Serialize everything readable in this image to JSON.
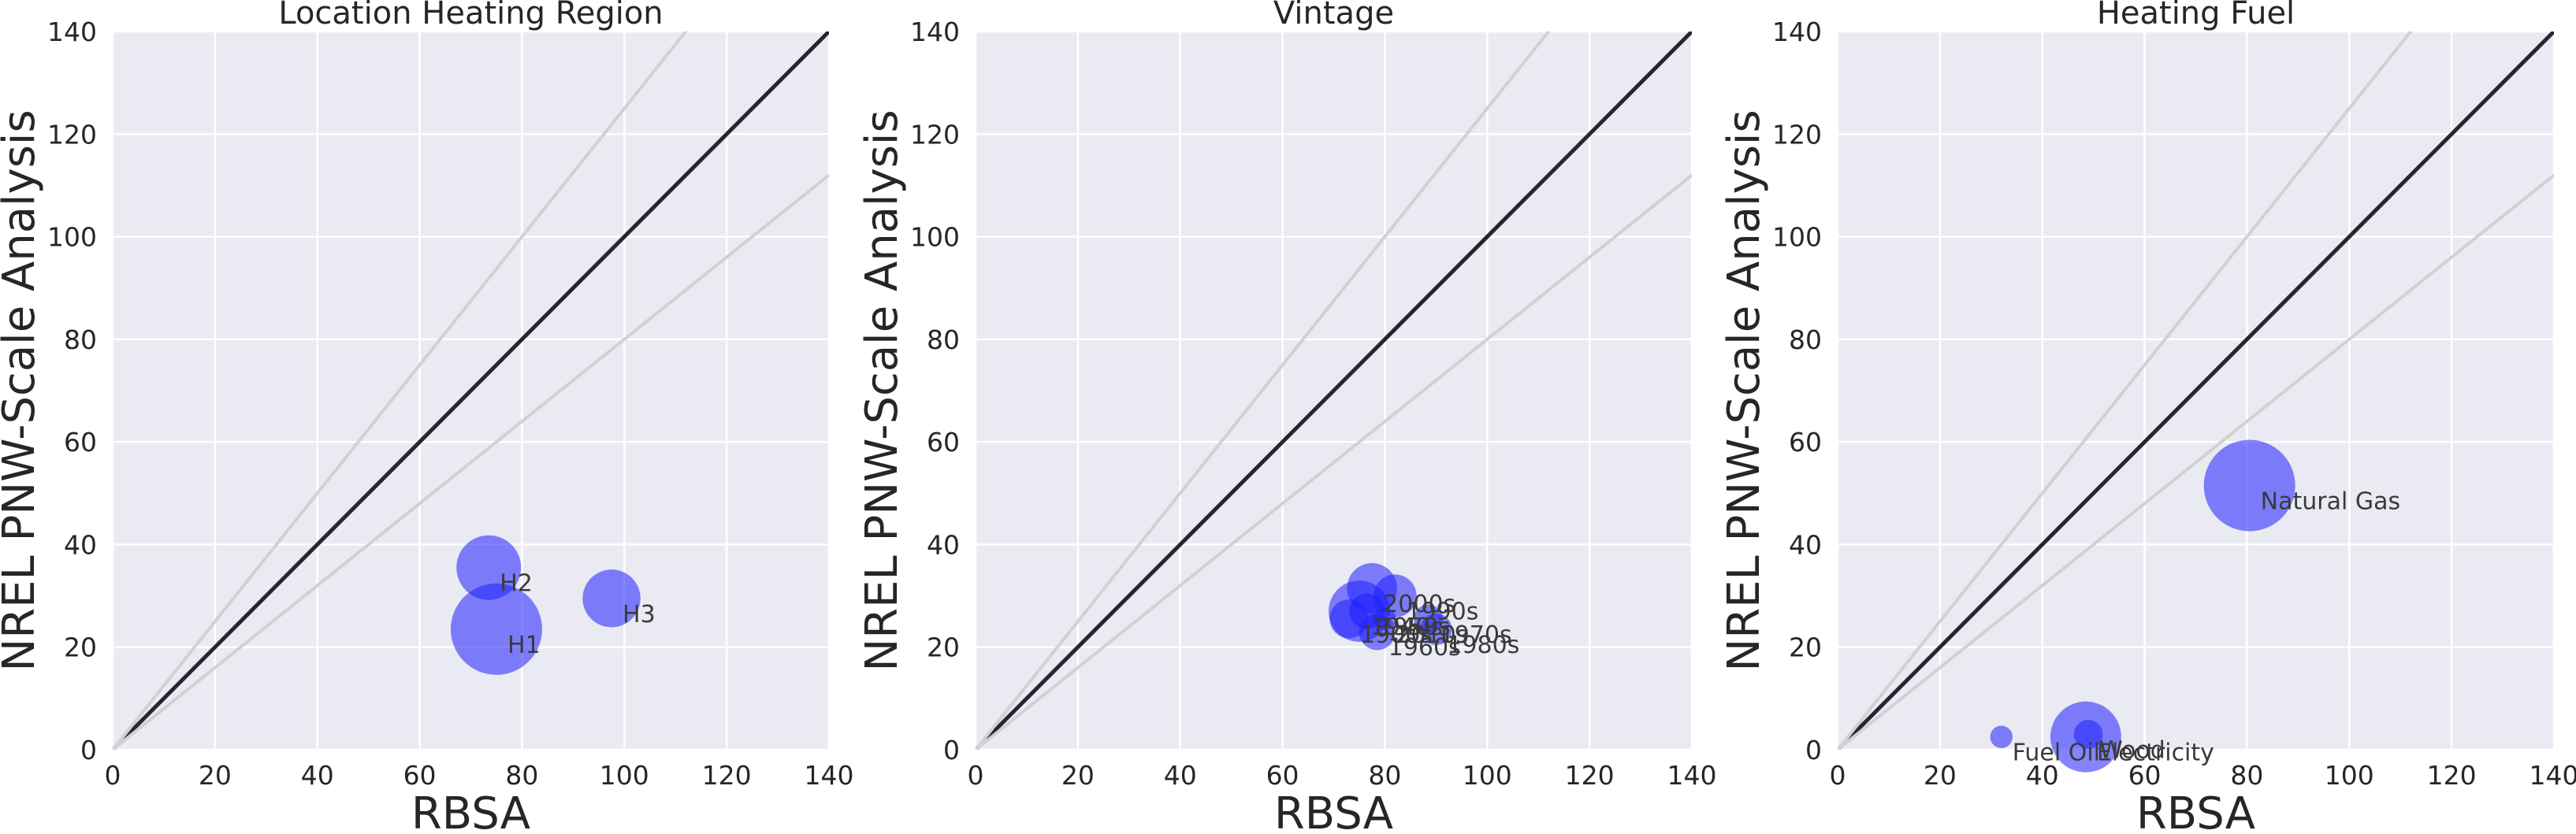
{
  "figure": {
    "plot_bg": "#eaeaf2",
    "grid_color": "#ffffff",
    "bubble_color": "#1f1fff",
    "bubble_opacity": 0.55,
    "identity_line_color": "#262630",
    "guide_line_color": "#d0d0d6"
  },
  "chart_data": [
    {
      "type": "scatter",
      "title": "Location Heating Region",
      "xlabel": "RBSA",
      "ylabel": "NREL PNW-Scale Analysis",
      "xlim": [
        0,
        140
      ],
      "ylim": [
        0,
        140
      ],
      "xticks": [
        "0",
        "20",
        "40",
        "60",
        "80",
        "100",
        "120",
        "140"
      ],
      "yticks": [
        "0",
        "20",
        "40",
        "60",
        "80",
        "100",
        "120",
        "140"
      ],
      "grid": true,
      "reference_lines": [
        {
          "slope": 1.0
        },
        {
          "slope": 1.25
        },
        {
          "slope": 0.8
        }
      ],
      "points": [
        {
          "label": "H2",
          "x": 73.5,
          "y": 35.5,
          "size": 0.5
        },
        {
          "label": "H1",
          "x": 75,
          "y": 23.5,
          "size": 1.0
        },
        {
          "label": "H3",
          "x": 97.5,
          "y": 29.5,
          "size": 0.4
        }
      ]
    },
    {
      "type": "scatter",
      "title": "Vintage",
      "xlabel": "RBSA",
      "ylabel": "NREL PNW-Scale Analysis",
      "xlim": [
        0,
        140
      ],
      "ylim": [
        0,
        140
      ],
      "xticks": [
        "0",
        "20",
        "40",
        "60",
        "80",
        "100",
        "120",
        "140"
      ],
      "yticks": [
        "0",
        "20",
        "40",
        "60",
        "80",
        "100",
        "120",
        "140"
      ],
      "grid": true,
      "reference_lines": [
        {
          "slope": 1.0
        },
        {
          "slope": 1.25
        },
        {
          "slope": 0.8
        }
      ],
      "points": [
        {
          "label": "1990s",
          "x": 82,
          "y": 30,
          "size": 0.22
        },
        {
          "label": "2000s",
          "x": 77.5,
          "y": 31.5,
          "size": 0.3
        },
        {
          "label": "1970s",
          "x": 88.5,
          "y": 25.5,
          "size": 0.1
        },
        {
          "label": "2010s",
          "x": 80,
          "y": 25.5,
          "size": 0.06
        },
        {
          "label": "1960s",
          "x": 78.5,
          "y": 23,
          "size": 0.16
        },
        {
          "label": "1950s",
          "x": 76.5,
          "y": 27,
          "size": 0.15
        },
        {
          "label": "1940s",
          "x": 75,
          "y": 27,
          "size": 0.45
        },
        {
          "label": "1900s",
          "x": 73,
          "y": 25.5,
          "size": 0.18
        },
        {
          "label": "1980s",
          "x": 90,
          "y": 23.5,
          "size": 0.12
        }
      ]
    },
    {
      "type": "scatter",
      "title": "Heating Fuel",
      "xlabel": "RBSA",
      "ylabel": "NREL PNW-Scale Analysis",
      "xlim": [
        0,
        140
      ],
      "ylim": [
        0,
        140
      ],
      "xticks": [
        "0",
        "20",
        "40",
        "60",
        "80",
        "100",
        "120",
        "140"
      ],
      "yticks": [
        "0",
        "20",
        "40",
        "60",
        "80",
        "100",
        "120",
        "140"
      ],
      "grid": true,
      "reference_lines": [
        {
          "slope": 1.0
        },
        {
          "slope": 1.25
        },
        {
          "slope": 0.8
        }
      ],
      "points": [
        {
          "label": "Natural Gas",
          "x": 80.5,
          "y": 51.5,
          "size": 1.0
        },
        {
          "label": "Electricity",
          "x": 48.5,
          "y": 2.5,
          "size": 0.6
        },
        {
          "label": "Wood",
          "x": 49,
          "y": 3,
          "size": 0.1
        },
        {
          "label": "Fuel Oil",
          "x": 32,
          "y": 2.5,
          "size": 0.06
        }
      ]
    }
  ]
}
